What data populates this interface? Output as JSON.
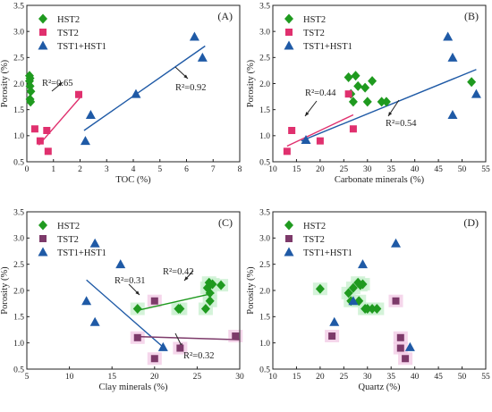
{
  "colors": {
    "hst2": "#1f9a1f",
    "tst2_a": "#e0306e",
    "tst2_c": "#7d3a6a",
    "tst1": "#1f5aa6",
    "fit_a_tst2": "#e0306e",
    "fit_a_tst1": "#1f5aa6",
    "fit_c_hst2": "#1f9a1f",
    "fit_c_tst2": "#7d3a6a",
    "fit_c_tst1": "#1f5aa6",
    "halo_green": "#c9f0cf",
    "halo_pink": "#f3cce6"
  },
  "chart_data": [
    {
      "id": "A",
      "type": "scatter",
      "panel_label": "(A)",
      "xlabel": "TOC (%)",
      "ylabel": "Porosity (%)",
      "xlim": [
        0,
        8
      ],
      "ylim": [
        0.5,
        3.5
      ],
      "xticks": [
        "0",
        "1",
        "2",
        "3",
        "4",
        "5",
        "6",
        "7",
        "8"
      ],
      "yticks": [
        "0.5",
        "1.0",
        "1.5",
        "2.0",
        "2.5",
        "3.0",
        "3.5"
      ],
      "legend": [
        "HST2",
        "TST2",
        "TST1+HST1"
      ],
      "legend_placement": "top-left",
      "series": [
        {
          "name": "HST2",
          "marker": "diamond",
          "x": [
            0.1,
            0.12,
            0.1,
            0.12,
            0.15,
            0.12,
            0.14
          ],
          "y": [
            2.15,
            2.1,
            2.05,
            1.95,
            1.85,
            1.7,
            1.65
          ]
        },
        {
          "name": "TST2",
          "marker": "square",
          "x": [
            0.3,
            0.5,
            0.75,
            0.8,
            1.95
          ],
          "y": [
            1.13,
            0.9,
            1.1,
            0.7,
            1.79
          ]
        },
        {
          "name": "TST1+HST1",
          "marker": "triangle",
          "x": [
            2.2,
            2.4,
            4.1,
            6.3,
            6.6
          ],
          "y": [
            0.9,
            1.4,
            1.8,
            2.9,
            2.5
          ]
        }
      ],
      "fits": [
        {
          "series": "TST2",
          "label": "R²=0.65",
          "x": [
            0.45,
            2.0
          ],
          "y": [
            0.82,
            1.73
          ]
        },
        {
          "series": "TST1+HST1",
          "label": "R²=0.92",
          "x": [
            2.15,
            6.7
          ],
          "y": [
            1.1,
            2.72
          ]
        }
      ]
    },
    {
      "id": "B",
      "type": "scatter",
      "panel_label": "(B)",
      "xlabel": "Carbonate minerals (%)",
      "ylabel": "Porosity (%)",
      "xlim": [
        10,
        55
      ],
      "ylim": [
        0.5,
        3.5
      ],
      "xticks": [
        "10",
        "15",
        "20",
        "25",
        "30",
        "35",
        "40",
        "45",
        "50",
        "55"
      ],
      "yticks": [
        "0.5",
        "1.0",
        "1.5",
        "2.0",
        "2.5",
        "3.0",
        "3.5"
      ],
      "legend": [
        "HST2",
        "TST2",
        "TST1+HST1"
      ],
      "legend_placement": "top-left",
      "series": [
        {
          "name": "HST2",
          "marker": "diamond",
          "x": [
            26,
            27.5,
            26.5,
            27,
            28,
            29.5,
            31,
            30,
            33,
            34,
            52
          ],
          "y": [
            2.12,
            2.15,
            1.8,
            1.65,
            1.95,
            1.92,
            2.05,
            1.65,
            1.65,
            1.65,
            2.03
          ]
        },
        {
          "name": "TST2",
          "marker": "square",
          "x": [
            13,
            14,
            20,
            26,
            27
          ],
          "y": [
            0.7,
            1.1,
            0.9,
            1.8,
            1.13
          ]
        },
        {
          "name": "TST1+HST1",
          "marker": "triangle",
          "x": [
            17,
            47,
            48,
            48,
            53
          ],
          "y": [
            0.92,
            2.9,
            2.5,
            1.4,
            1.8
          ]
        }
      ],
      "fits": [
        {
          "series": "TST2",
          "label": "R²=0.44",
          "x": [
            13,
            27
          ],
          "y": [
            0.8,
            1.4
          ]
        },
        {
          "series": "TST1+HST1",
          "label": "R²=0.54",
          "x": [
            16,
            53
          ],
          "y": [
            0.9,
            2.27
          ]
        }
      ]
    },
    {
      "id": "C",
      "type": "scatter",
      "panel_label": "(C)",
      "xlabel": "Clay minerals (%)",
      "ylabel": "Porosity (%)",
      "xlim": [
        5,
        30
      ],
      "ylim": [
        0.5,
        3.5
      ],
      "xticks": [
        "5",
        "10",
        "15",
        "20",
        "25",
        "30"
      ],
      "yticks": [
        "0.5",
        "1.0",
        "1.5",
        "2.0",
        "2.5",
        "3.0",
        "3.5"
      ],
      "legend": [
        "HST2",
        "TST2",
        "TST1+HST1"
      ],
      "legend_placement": "top-left",
      "series": [
        {
          "name": "HST2",
          "marker": "diamond",
          "x": [
            18,
            22.8,
            23,
            26,
            26.5,
            26.5,
            26.2,
            26.8,
            26.4,
            27.8
          ],
          "y": [
            1.65,
            1.65,
            1.65,
            1.65,
            1.8,
            1.95,
            2.05,
            2.12,
            2.15,
            2.1
          ]
        },
        {
          "name": "TST2",
          "marker": "square",
          "x": [
            18,
            20,
            20,
            23,
            29.5
          ],
          "y": [
            1.1,
            0.7,
            1.8,
            0.9,
            1.13
          ]
        },
        {
          "name": "TST1+HST1",
          "marker": "triangle",
          "x": [
            12,
            13,
            13,
            16,
            21
          ],
          "y": [
            1.8,
            1.4,
            2.9,
            2.5,
            0.92
          ]
        }
      ],
      "fits": [
        {
          "series": "HST2",
          "label": "R²=0.42",
          "x": [
            18,
            27
          ],
          "y": [
            1.62,
            1.95
          ]
        },
        {
          "series": "TST1+HST1",
          "label": "R²=0.31",
          "x": [
            12,
            21
          ],
          "y": [
            2.2,
            0.92
          ]
        },
        {
          "series": "TST2",
          "label": "R²=0.32",
          "x": [
            18,
            30
          ],
          "y": [
            1.12,
            1.06
          ]
        }
      ]
    },
    {
      "id": "D",
      "type": "scatter",
      "panel_label": "(D)",
      "xlabel": "Quartz (%)",
      "ylabel": "Porosity (%)",
      "xlim": [
        10,
        55
      ],
      "ylim": [
        0.5,
        3.5
      ],
      "xticks": [
        "10",
        "15",
        "20",
        "25",
        "30",
        "35",
        "40",
        "45",
        "50",
        "55"
      ],
      "yticks": [
        "0.5",
        "1.0",
        "1.5",
        "2.0",
        "2.5",
        "3.0",
        "3.5"
      ],
      "legend": [
        "HST2",
        "TST2",
        "TST1+HST1"
      ],
      "legend_placement": "top-left",
      "series": [
        {
          "name": "HST2",
          "marker": "diamond",
          "x": [
            20,
            26,
            27,
            28,
            28.5,
            29,
            29.5,
            30,
            31,
            32,
            26.5,
            28.2
          ],
          "y": [
            2.03,
            1.95,
            2.05,
            2.15,
            2.1,
            2.12,
            1.65,
            1.65,
            1.65,
            1.65,
            1.8,
            1.8
          ]
        },
        {
          "name": "TST2",
          "marker": "square",
          "x": [
            22.5,
            36,
            37,
            37,
            38
          ],
          "y": [
            1.13,
            1.8,
            1.1,
            0.9,
            0.7
          ]
        },
        {
          "name": "TST1+HST1",
          "marker": "triangle",
          "x": [
            23,
            27,
            29,
            36,
            39
          ],
          "y": [
            1.4,
            1.8,
            2.5,
            2.9,
            0.92
          ]
        }
      ],
      "fits": []
    }
  ]
}
